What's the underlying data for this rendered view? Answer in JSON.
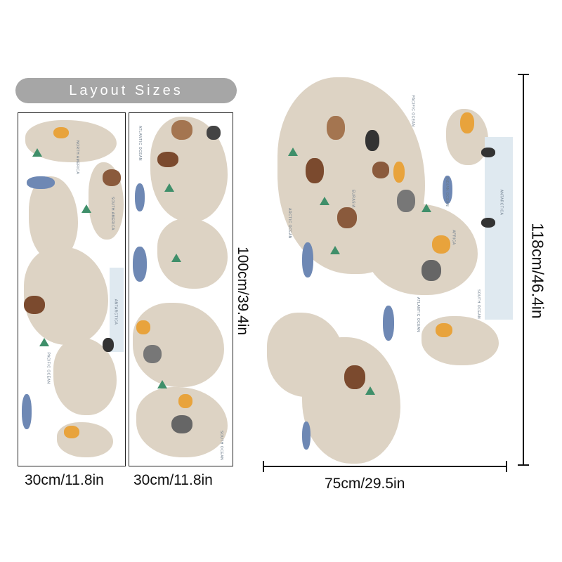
{
  "header": {
    "title": "Layout Sizes"
  },
  "panels": [
    {
      "width_label": "30cm/11.8in"
    },
    {
      "width_label": "30cm/11.8in",
      "height_label": "100cm/39.4in"
    }
  ],
  "full_map": {
    "width_label": "75cm/29.5in",
    "height_label": "118cm/46.4in"
  },
  "map_labels": [
    "PACIFIC OCEAN",
    "INDIAN OCEAN",
    "ANTARCTICA",
    "ARCTIC OCEAN",
    "SOUTH OCEAN",
    "ATLANTIC OCEAN",
    "AFRICA",
    "EURASIA",
    "SOUTH AMERICA",
    "NORTH AMERICA"
  ],
  "colors": {
    "land": "#ddd3c4",
    "pill": "#a6a6a6",
    "ice": "#dfe9f0",
    "tree": "#3f8f6a"
  }
}
